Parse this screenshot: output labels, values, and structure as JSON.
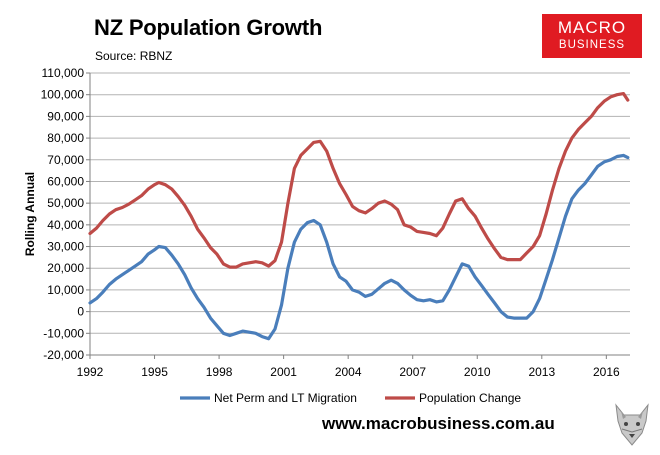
{
  "header": {
    "title": "NZ Population Growth",
    "source": "Source: RBNZ"
  },
  "logo": {
    "line1": "MACRO",
    "line2": "BUSINESS"
  },
  "footer": {
    "website": "www.macrobusiness.com.au",
    "wolf_icon": "wolf-head-icon"
  },
  "colors": {
    "migration": "#4a7ebb",
    "population": "#be4b48",
    "logo_bg": "#e01b22"
  },
  "chart_data": {
    "type": "line",
    "title": "NZ Population Growth",
    "ylabel": "Rolling Annual",
    "xlabel": "",
    "ylim": [
      -20000,
      110000
    ],
    "yticks": [
      -20000,
      -10000,
      0,
      10000,
      20000,
      30000,
      40000,
      50000,
      60000,
      70000,
      80000,
      90000,
      100000,
      110000
    ],
    "ytick_labels": [
      "-20,000",
      "-10,000",
      "0",
      "10,000",
      "20,000",
      "30,000",
      "40,000",
      "50,000",
      "60,000",
      "70,000",
      "80,000",
      "90,000",
      "100,000",
      "110,000"
    ],
    "xlim": [
      1992,
      2017.1
    ],
    "xticks": [
      1992,
      1995,
      1998,
      2001,
      2004,
      2007,
      2010,
      2013,
      2016
    ],
    "xtick_labels": [
      "1992",
      "1995",
      "1998",
      "2001",
      "2004",
      "2007",
      "2010",
      "2013",
      "2016"
    ],
    "grid": true,
    "legend": "bottom",
    "series": [
      {
        "name": "Net Perm and LT Migration",
        "color": "#4a7ebb",
        "x": [
          1992.0,
          1992.3,
          1992.6,
          1992.9,
          1993.2,
          1993.5,
          1993.8,
          1994.1,
          1994.4,
          1994.7,
          1995.0,
          1995.2,
          1995.5,
          1995.8,
          1996.1,
          1996.4,
          1996.7,
          1997.0,
          1997.3,
          1997.6,
          1997.9,
          1998.2,
          1998.5,
          1998.8,
          1999.1,
          1999.4,
          1999.7,
          2000.0,
          2000.3,
          2000.6,
          2000.9,
          2001.2,
          2001.5,
          2001.8,
          2002.1,
          2002.4,
          2002.7,
          2003.0,
          2003.3,
          2003.6,
          2003.9,
          2004.2,
          2004.5,
          2004.8,
          2005.1,
          2005.4,
          2005.7,
          2006.0,
          2006.3,
          2006.6,
          2006.9,
          2007.2,
          2007.5,
          2007.8,
          2008.1,
          2008.4,
          2008.7,
          2009.0,
          2009.3,
          2009.6,
          2009.9,
          2010.2,
          2010.5,
          2010.8,
          2011.1,
          2011.4,
          2011.7,
          2012.0,
          2012.3,
          2012.6,
          2012.9,
          2013.2,
          2013.5,
          2013.8,
          2014.1,
          2014.4,
          2014.7,
          2015.0,
          2015.3,
          2015.6,
          2015.9,
          2016.2,
          2016.5,
          2016.8,
          2017.0
        ],
        "values": [
          4000,
          6000,
          9000,
          12500,
          15000,
          17000,
          19000,
          21000,
          23000,
          26500,
          28500,
          30000,
          29500,
          26000,
          22000,
          17000,
          11000,
          6000,
          2000,
          -3000,
          -6500,
          -10000,
          -11000,
          -10000,
          -9000,
          -9500,
          -10000,
          -11500,
          -12500,
          -8000,
          3000,
          20000,
          32000,
          38000,
          41000,
          42000,
          40000,
          32000,
          22000,
          16000,
          14000,
          10000,
          9000,
          7000,
          8000,
          10500,
          13000,
          14500,
          13000,
          10000,
          7500,
          5500,
          5000,
          5500,
          4500,
          5000,
          10000,
          16000,
          22000,
          21000,
          16000,
          12000,
          8000,
          4000,
          0,
          -2500,
          -3000,
          -3000,
          -3000,
          0,
          6000,
          15000,
          24000,
          34000,
          44000,
          52000,
          56000,
          59000,
          63000,
          67000,
          69000,
          70000,
          71500,
          72000,
          71000
        ]
      },
      {
        "name": "Population Change",
        "color": "#be4b48",
        "x": [
          1992.0,
          1992.3,
          1992.6,
          1992.9,
          1993.2,
          1993.5,
          1993.8,
          1994.1,
          1994.4,
          1994.7,
          1995.0,
          1995.2,
          1995.5,
          1995.8,
          1996.1,
          1996.4,
          1996.7,
          1997.0,
          1997.3,
          1997.6,
          1997.9,
          1998.2,
          1998.5,
          1998.8,
          1999.1,
          1999.4,
          1999.7,
          2000.0,
          2000.3,
          2000.6,
          2000.9,
          2001.2,
          2001.5,
          2001.8,
          2002.1,
          2002.4,
          2002.7,
          2003.0,
          2003.3,
          2003.6,
          2003.9,
          2004.2,
          2004.5,
          2004.8,
          2005.1,
          2005.4,
          2005.7,
          2006.0,
          2006.3,
          2006.6,
          2006.9,
          2007.2,
          2007.5,
          2007.8,
          2008.1,
          2008.4,
          2008.7,
          2009.0,
          2009.3,
          2009.6,
          2009.9,
          2010.2,
          2010.5,
          2010.8,
          2011.1,
          2011.4,
          2011.7,
          2012.0,
          2012.3,
          2012.6,
          2012.9,
          2013.2,
          2013.5,
          2013.8,
          2014.1,
          2014.4,
          2014.7,
          2015.0,
          2015.3,
          2015.6,
          2015.9,
          2016.2,
          2016.5,
          2016.8,
          2017.0
        ],
        "values": [
          36000,
          38500,
          42000,
          45000,
          47000,
          48000,
          49500,
          51500,
          53500,
          56500,
          58500,
          59500,
          58500,
          56500,
          53000,
          49000,
          44000,
          38000,
          34000,
          29500,
          26500,
          22000,
          20500,
          20500,
          22000,
          22500,
          23000,
          22500,
          21000,
          23500,
          32000,
          50000,
          66000,
          72000,
          75000,
          78000,
          78500,
          74000,
          66000,
          59000,
          54000,
          48500,
          46500,
          45500,
          47500,
          50000,
          51000,
          49500,
          47000,
          40000,
          39000,
          37000,
          36500,
          36000,
          35000,
          38500,
          45000,
          51000,
          52000,
          47500,
          44000,
          38500,
          33500,
          29000,
          25000,
          24000,
          24000,
          24000,
          27000,
          30000,
          35000,
          45000,
          56000,
          66000,
          74000,
          80000,
          84000,
          87000,
          90000,
          94000,
          97000,
          99000,
          100000,
          100500,
          97500
        ]
      }
    ]
  }
}
